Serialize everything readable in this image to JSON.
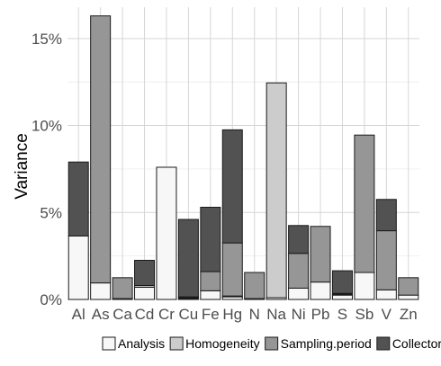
{
  "chart_data": {
    "type": "bar",
    "stacked": true,
    "ylabel": "Variance",
    "xlabel": "",
    "title": "",
    "ylim": [
      0,
      16.8
    ],
    "yticks": [
      0,
      5,
      10,
      15
    ],
    "ytick_labels": [
      "0%",
      "5%",
      "10%",
      "15%"
    ],
    "grid": true,
    "legend_position": "bottom",
    "categories": [
      "Al",
      "As",
      "Ca",
      "Cd",
      "Cr",
      "Cu",
      "Fe",
      "Hg",
      "N",
      "Na",
      "Ni",
      "Pb",
      "S",
      "Sb",
      "V",
      "Zn"
    ],
    "series": [
      {
        "name": "Analysis",
        "color": "#f7f7f7",
        "values": [
          3.65,
          0.95,
          0.05,
          0.7,
          7.6,
          0.05,
          0.5,
          0.15,
          0.05,
          0.1,
          0.65,
          1.0,
          0.25,
          1.55,
          0.55,
          0.25
        ]
      },
      {
        "name": "Homogeneity",
        "color": "#cccccc",
        "values": [
          0.0,
          0.0,
          0.0,
          0.1,
          0.0,
          0.05,
          0.0,
          0.05,
          0.0,
          12.35,
          0.0,
          0.0,
          0.05,
          0.0,
          0.0,
          0.0
        ]
      },
      {
        "name": "Sampling.period",
        "color": "#969696",
        "values": [
          0.0,
          15.35,
          1.2,
          0.0,
          0.0,
          0.05,
          1.1,
          3.05,
          1.5,
          0.0,
          2.0,
          3.2,
          0.05,
          7.9,
          3.4,
          1.0
        ]
      },
      {
        "name": "Collector",
        "color": "#525252",
        "values": [
          4.25,
          0.0,
          0.0,
          1.45,
          0.0,
          4.45,
          3.7,
          6.5,
          0.0,
          0.0,
          1.6,
          0.0,
          1.3,
          0.0,
          1.8,
          0.0
        ]
      }
    ]
  }
}
